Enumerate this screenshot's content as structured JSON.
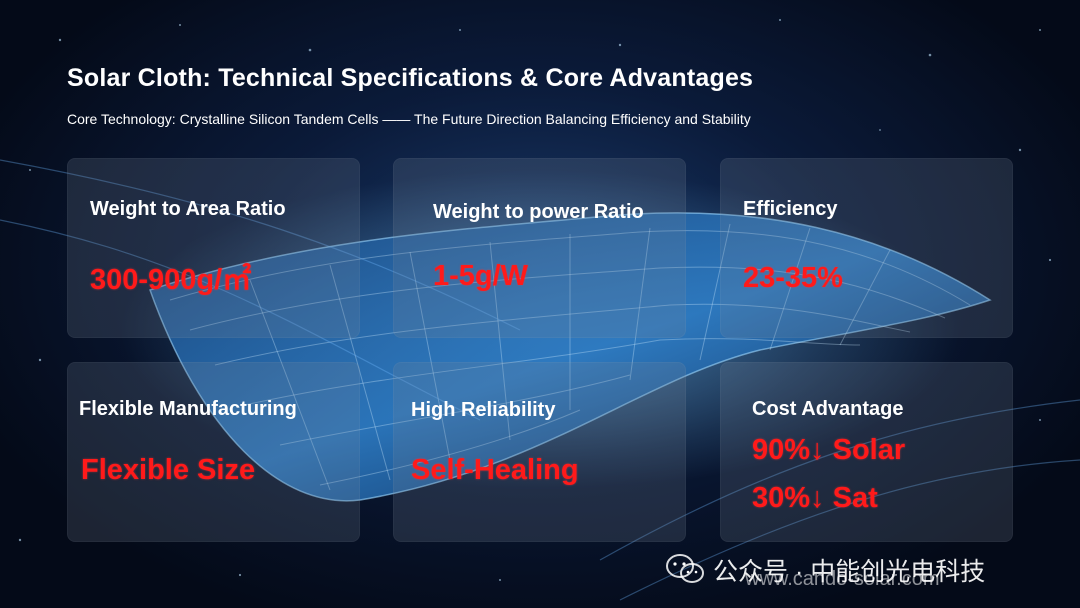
{
  "slide": {
    "title": "Solar Cloth: Technical Specifications & Core Advantages",
    "subtitle": "Core Technology: Crystalline Silicon Tandem Cells —— The Future Direction Balancing Efficiency and Stability"
  },
  "cards": [
    {
      "label": "Weight to Area Ratio",
      "value": "300-900g/㎡"
    },
    {
      "label": "Weight to power Ratio",
      "value": "1-5g/W"
    },
    {
      "label": "Efficiency",
      "value": "23-35%"
    },
    {
      "label": "Flexible Manufacturing",
      "value": "Flexible Size"
    },
    {
      "label": "High Reliability",
      "value": "Self-Healing"
    },
    {
      "label": "Cost Advantage",
      "value": "90%↓ Solar",
      "value2": "30%↓ Sat"
    }
  ],
  "watermark": {
    "account": "公众号 · 中能创光电科技",
    "site": "www.cando-solar.com",
    "icon": "wechat-icon"
  },
  "colors": {
    "accent": "#ff1a1a",
    "text": "#ffffff",
    "background": "#06101f"
  }
}
